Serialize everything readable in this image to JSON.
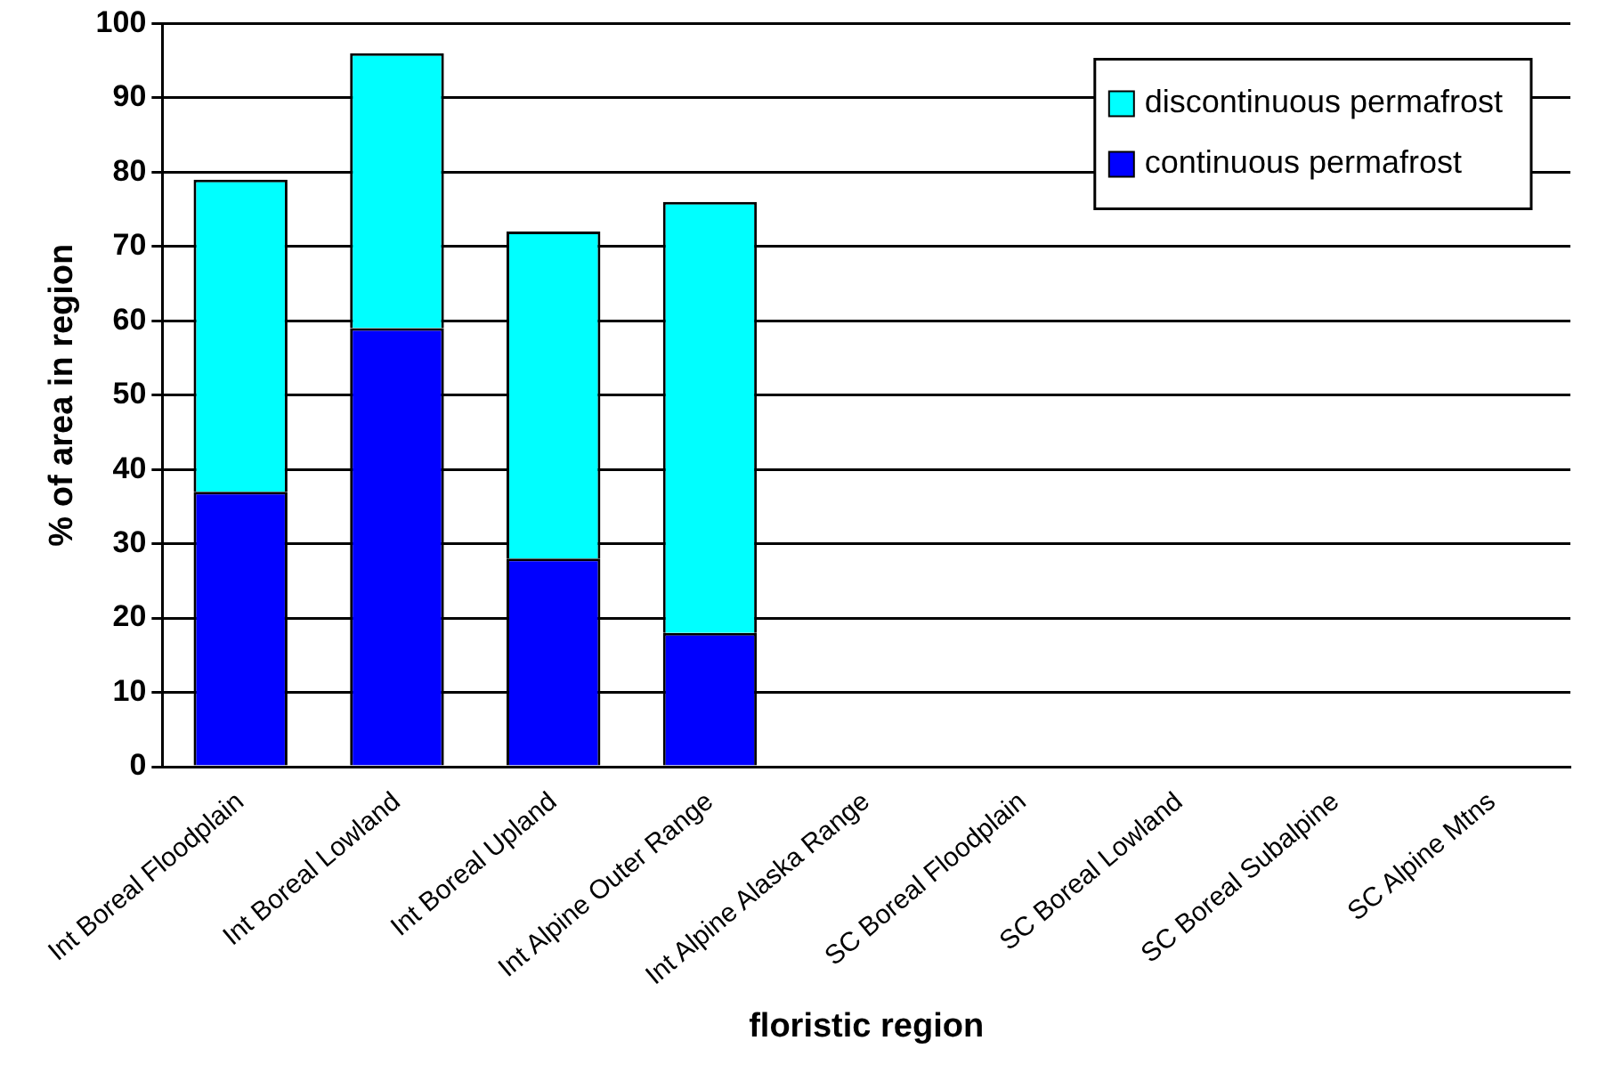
{
  "chart_data": {
    "type": "bar",
    "stacked": true,
    "xlabel": "floristic region",
    "ylabel": "% of area in region",
    "categories": [
      "Int Boreal Floodplain",
      "Int Boreal Lowland",
      "Int Boreal Upland",
      "Int Alpine Outer Range",
      "Int Alpine Alaska Range",
      "SC Boreal Floodplain",
      "SC Boreal Lowland",
      "SC Boreal Subalpine",
      "SC Alpine Mtns"
    ],
    "series": [
      {
        "name": "continuous permafrost",
        "color": "#0000ff",
        "values": [
          37,
          59,
          28,
          18,
          null,
          null,
          null,
          null,
          null
        ]
      },
      {
        "name": "discontinuous permafrost",
        "color": "#00ffff",
        "values": [
          42,
          37,
          44,
          58,
          null,
          null,
          null,
          null,
          null
        ]
      }
    ],
    "ylim": [
      0,
      100
    ],
    "yticks": [
      0,
      10,
      20,
      30,
      40,
      50,
      60,
      70,
      80,
      90,
      100
    ],
    "grid": "y",
    "legend": "top right"
  }
}
